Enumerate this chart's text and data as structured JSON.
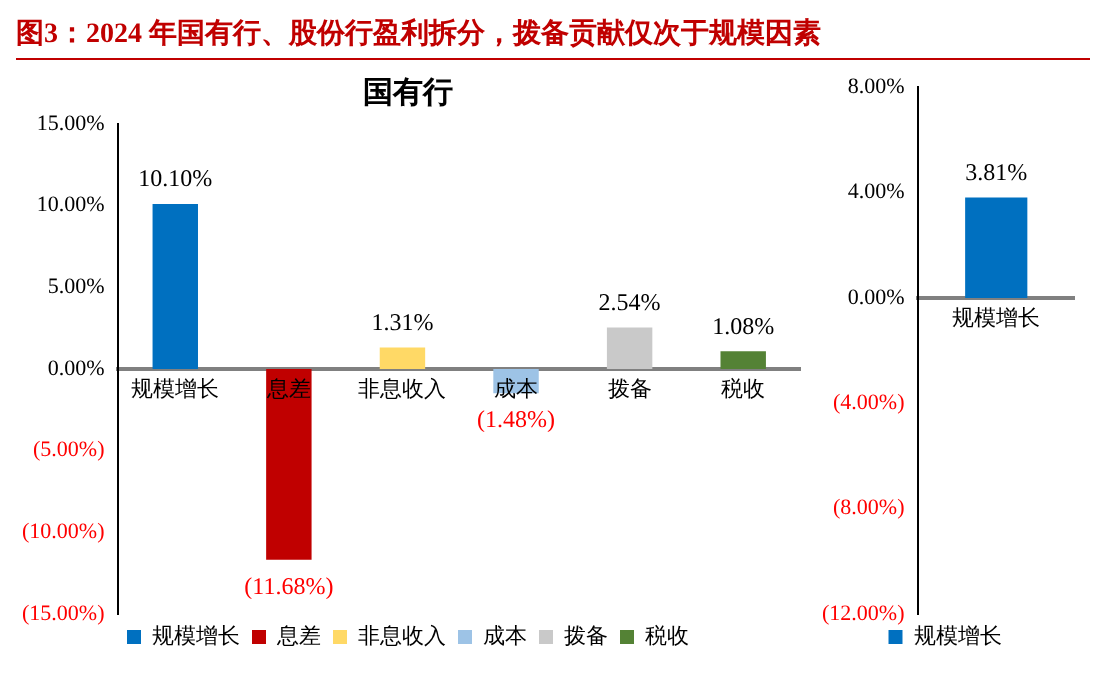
{
  "chart_data": [
    {
      "type": "bar",
      "title": "图3：2024 年国有行、股份行盈利拆分，拨备贡献仅次于规模因素",
      "subtitle": "国有行",
      "categories": [
        "规模增长",
        "息差",
        "非息收入",
        "成本",
        "拨备",
        "税收"
      ],
      "stacked": true,
      "series": [
        {
          "name": "规模增长",
          "color": "#0070c0",
          "values": [
            10.1,
            null,
            null,
            null,
            null,
            null
          ],
          "value_labels": [
            "10.10%",
            null,
            null,
            null,
            null,
            null
          ]
        },
        {
          "name": "息差",
          "color": "#c00000",
          "values": [
            null,
            -11.68,
            null,
            null,
            null,
            null
          ],
          "value_labels": [
            null,
            "(11.68%)",
            null,
            null,
            null,
            null
          ]
        },
        {
          "name": "非息收入",
          "color": "#ffd966",
          "values": [
            null,
            null,
            1.31,
            null,
            null,
            null
          ],
          "value_labels": [
            null,
            null,
            "1.31%",
            null,
            null,
            null
          ]
        },
        {
          "name": "成本",
          "color": "#9dc3e6",
          "values": [
            null,
            null,
            null,
            -1.48,
            null,
            null
          ],
          "value_labels": [
            null,
            null,
            null,
            "(1.48%)",
            null,
            null
          ]
        },
        {
          "name": "拨备",
          "color": "#c9c9c9",
          "values": [
            null,
            null,
            null,
            null,
            2.54,
            null
          ],
          "value_labels": [
            null,
            null,
            null,
            null,
            "2.54%",
            null
          ]
        },
        {
          "name": "税收",
          "color": "#548235",
          "values": [
            null,
            null,
            null,
            null,
            null,
            1.08
          ],
          "value_labels": [
            null,
            null,
            null,
            null,
            null,
            "1.08%"
          ]
        }
      ],
      "ylim": [
        -15,
        15
      ],
      "yticks": [
        {
          "value": 15,
          "label": "15.00%"
        },
        {
          "value": 10,
          "label": "10.00%"
        },
        {
          "value": 5,
          "label": "5.00%"
        },
        {
          "value": 0,
          "label": "0.00%"
        },
        {
          "value": -5,
          "label": "(5.00%)"
        },
        {
          "value": -10,
          "label": "(10.00%)"
        },
        {
          "value": -15,
          "label": "(15.00%)"
        }
      ],
      "legend": "bottom",
      "grid": false
    },
    {
      "type": "bar",
      "categories": [
        "规模增长"
      ],
      "stacked": true,
      "series": [
        {
          "name": "规模增长",
          "color": "#0070c0",
          "values": [
            3.81
          ],
          "value_labels": [
            "3.81%"
          ]
        }
      ],
      "ylim": [
        -12,
        8
      ],
      "yticks": [
        {
          "value": 8,
          "label": "8.00%"
        },
        {
          "value": 4,
          "label": "4.00%"
        },
        {
          "value": 0,
          "label": "0.00%"
        },
        {
          "value": -4,
          "label": "(4.00%)"
        },
        {
          "value": -8,
          "label": "(8.00%)"
        },
        {
          "value": -12,
          "label": "(12.00%)"
        }
      ],
      "legend": "bottom",
      "grid": false
    }
  ]
}
